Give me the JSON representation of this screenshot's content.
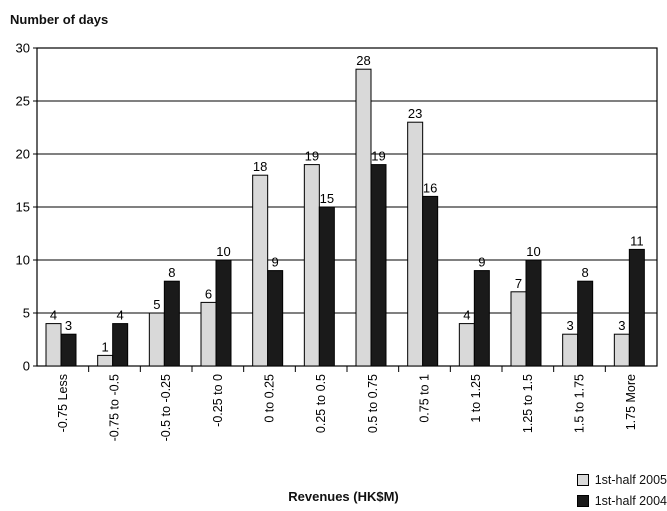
{
  "chart_data": {
    "type": "bar",
    "ylabel": "Number of days",
    "xlabel": "Revenues (HK$M)",
    "ylim": [
      0,
      30
    ],
    "yticks": [
      "0",
      "5",
      "10",
      "15",
      "20",
      "25",
      "30"
    ],
    "grid": true,
    "legend_position": "bottom-right",
    "categories": [
      "-0.75 Less",
      "-0.75 to -0.5",
      "-0.5 to -0.25",
      "-0.25 to 0",
      "0 to 0.25",
      "0.25 to 0.5",
      "0.5 to 0.75",
      "0.75 to 1",
      "1 to 1.25",
      "1.25 to 1.5",
      "1.5 to 1.75",
      "1.75 More"
    ],
    "series": [
      {
        "name": "1st-half 2005",
        "color": "#d9d9d9",
        "values": [
          4,
          1,
          5,
          6,
          18,
          19,
          28,
          23,
          4,
          7,
          3,
          3
        ]
      },
      {
        "name": "1st-half 2004",
        "color": "#1a1a1a",
        "values": [
          3,
          4,
          8,
          10,
          9,
          15,
          19,
          16,
          9,
          10,
          8,
          11
        ]
      }
    ]
  }
}
